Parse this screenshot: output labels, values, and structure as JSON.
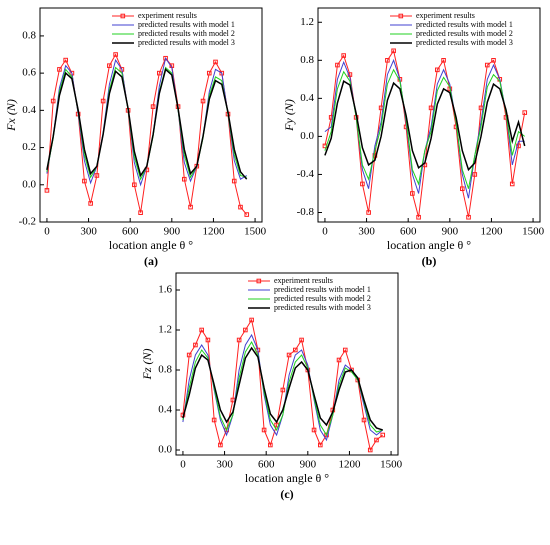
{
  "chart_data": [
    {
      "type": "line",
      "label": "(a)",
      "ylabel": "Fx (N)",
      "xlabel": "location angle θ °",
      "x": [
        0,
        45,
        90,
        135,
        180,
        225,
        270,
        315,
        360,
        405,
        450,
        495,
        540,
        585,
        630,
        675,
        720,
        765,
        810,
        855,
        900,
        945,
        990,
        1035,
        1080,
        1125,
        1170,
        1215,
        1260,
        1305,
        1350,
        1395,
        1440
      ],
      "xlim": [
        -50,
        1550
      ],
      "xticks": [
        0,
        300,
        600,
        900,
        1200,
        1500
      ],
      "ylim": [
        -0.2,
        0.95
      ],
      "yticks": [
        -0.2,
        {
          "value": 0,
          "label": "0.0"
        },
        0.2,
        0.4,
        0.6,
        0.8
      ],
      "legend": "upper right",
      "series": [
        {
          "name": "experiment results",
          "color": "#ff2020",
          "values": [
            -0.03,
            0.45,
            0.62,
            0.67,
            0.6,
            0.38,
            0.02,
            -0.1,
            0.05,
            0.45,
            0.64,
            0.7,
            0.62,
            0.4,
            0.0,
            -0.15,
            0.08,
            0.42,
            0.6,
            0.68,
            0.64,
            0.42,
            0.03,
            -0.12,
            0.1,
            0.45,
            0.6,
            0.66,
            0.6,
            0.38,
            0.02,
            -0.12,
            -0.16
          ]
        },
        {
          "name": "predicted results with model 1",
          "color": "#4040d0",
          "values": [
            0.06,
            0.26,
            0.52,
            0.64,
            0.6,
            0.38,
            0.13,
            0.01,
            0.1,
            0.28,
            0.54,
            0.67,
            0.62,
            0.4,
            0.12,
            0.0,
            0.1,
            0.27,
            0.53,
            0.68,
            0.63,
            0.4,
            0.12,
            0.02,
            0.1,
            0.26,
            0.5,
            0.62,
            0.6,
            0.38,
            0.13,
            0.03,
            0.05
          ]
        },
        {
          "name": "predicted results with model 2",
          "color": "#20d020",
          "values": [
            0.07,
            0.25,
            0.5,
            0.62,
            0.58,
            0.39,
            0.16,
            0.04,
            0.1,
            0.27,
            0.51,
            0.63,
            0.6,
            0.4,
            0.15,
            0.03,
            0.1,
            0.26,
            0.5,
            0.63,
            0.6,
            0.4,
            0.16,
            0.04,
            0.1,
            0.25,
            0.48,
            0.58,
            0.56,
            0.38,
            0.16,
            0.05,
            0.04
          ]
        },
        {
          "name": "predicted results with model 3",
          "color": "#000000",
          "values": [
            0.08,
            0.26,
            0.48,
            0.6,
            0.57,
            0.4,
            0.19,
            0.06,
            0.1,
            0.27,
            0.49,
            0.61,
            0.58,
            0.41,
            0.18,
            0.05,
            0.1,
            0.27,
            0.49,
            0.62,
            0.59,
            0.41,
            0.19,
            0.06,
            0.1,
            0.26,
            0.46,
            0.56,
            0.54,
            0.39,
            0.19,
            0.07,
            0.03
          ]
        }
      ]
    },
    {
      "type": "line",
      "label": "(b)",
      "ylabel": "Fy (N)",
      "xlabel": "location angle θ °",
      "x": [
        0,
        45,
        90,
        135,
        180,
        225,
        270,
        315,
        360,
        405,
        450,
        495,
        540,
        585,
        630,
        675,
        720,
        765,
        810,
        855,
        900,
        945,
        990,
        1035,
        1080,
        1125,
        1170,
        1215,
        1260,
        1305,
        1350,
        1395,
        1440
      ],
      "xlim": [
        -50,
        1550
      ],
      "xticks": [
        0,
        300,
        600,
        900,
        1200,
        1500
      ],
      "ylim": [
        -0.9,
        1.35
      ],
      "yticks": [
        -0.8,
        -0.4,
        {
          "value": 0,
          "label": "0.0"
        },
        0.4,
        0.8,
        1.2
      ],
      "legend": "upper right",
      "series": [
        {
          "name": "experiment results",
          "color": "#ff2020",
          "values": [
            -0.1,
            0.2,
            0.75,
            0.85,
            0.65,
            0.2,
            -0.5,
            -0.8,
            -0.2,
            0.3,
            0.8,
            0.9,
            0.6,
            0.1,
            -0.6,
            -0.85,
            -0.3,
            0.3,
            0.7,
            0.8,
            0.5,
            0.1,
            -0.55,
            -0.85,
            -0.4,
            0.3,
            0.75,
            0.8,
            0.6,
            0.2,
            -0.5,
            -0.1,
            0.25
          ]
        },
        {
          "name": "predicted results with model 1",
          "color": "#4040d0",
          "values": [
            0.05,
            0.1,
            0.6,
            0.78,
            0.62,
            0.2,
            -0.35,
            -0.55,
            -0.1,
            0.15,
            0.65,
            0.8,
            0.6,
            0.15,
            -0.4,
            -0.6,
            -0.15,
            0.1,
            0.55,
            0.7,
            0.55,
            0.15,
            -0.4,
            -0.65,
            -0.2,
            0.15,
            0.6,
            0.75,
            0.6,
            0.25,
            -0.3,
            -0.05,
            -0.05
          ]
        },
        {
          "name": "predicted results with model 2",
          "color": "#20d020",
          "values": [
            -0.15,
            0.05,
            0.5,
            0.68,
            0.58,
            0.2,
            -0.3,
            -0.45,
            -0.15,
            0.1,
            0.55,
            0.7,
            0.58,
            0.18,
            -0.35,
            -0.5,
            -0.15,
            0.05,
            0.48,
            0.62,
            0.52,
            0.15,
            -0.35,
            -0.55,
            -0.2,
            0.1,
            0.52,
            0.65,
            0.58,
            0.25,
            -0.2,
            0.05,
            0.0
          ]
        },
        {
          "name": "predicted results with model 3",
          "color": "#000000",
          "values": [
            -0.2,
            -0.02,
            0.35,
            0.58,
            0.54,
            0.24,
            -0.12,
            -0.3,
            -0.25,
            0.0,
            0.38,
            0.56,
            0.5,
            0.22,
            -0.15,
            -0.33,
            -0.28,
            -0.02,
            0.34,
            0.5,
            0.46,
            0.2,
            -0.15,
            -0.35,
            -0.28,
            0.0,
            0.36,
            0.55,
            0.5,
            0.28,
            -0.05,
            0.15,
            -0.1
          ]
        }
      ]
    },
    {
      "type": "line",
      "label": "(c)",
      "ylabel": "Fz (N)",
      "xlabel": "location angle θ °",
      "x": [
        0,
        45,
        90,
        135,
        180,
        225,
        270,
        315,
        360,
        405,
        450,
        495,
        540,
        585,
        630,
        675,
        720,
        765,
        810,
        855,
        900,
        945,
        990,
        1035,
        1080,
        1125,
        1170,
        1215,
        1260,
        1305,
        1350,
        1395,
        1440
      ],
      "xlim": [
        -50,
        1550
      ],
      "xticks": [
        0,
        300,
        600,
        900,
        1200,
        1500
      ],
      "ylim": [
        -0.05,
        1.77
      ],
      "yticks": [
        {
          "value": 0,
          "label": "0.0"
        },
        0.4,
        0.8,
        1.2,
        1.6
      ],
      "legend": "upper right",
      "series": [
        {
          "name": "experiment results",
          "color": "#ff2020",
          "values": [
            0.35,
            0.95,
            1.05,
            1.2,
            1.1,
            0.3,
            0.05,
            0.2,
            0.5,
            1.1,
            1.2,
            1.3,
            1.0,
            0.2,
            0.05,
            0.25,
            0.6,
            0.95,
            1.0,
            1.1,
            0.8,
            0.2,
            0.05,
            0.15,
            0.4,
            0.9,
            1.0,
            0.8,
            0.7,
            0.3,
            0.0,
            0.1,
            0.15
          ]
        },
        {
          "name": "predicted results with model 1",
          "color": "#4040d0",
          "values": [
            0.28,
            0.7,
            0.95,
            1.05,
            0.95,
            0.6,
            0.3,
            0.15,
            0.35,
            0.8,
            1.05,
            1.15,
            1.0,
            0.55,
            0.25,
            0.15,
            0.35,
            0.75,
            0.95,
            1.0,
            0.85,
            0.5,
            0.2,
            0.1,
            0.35,
            0.7,
            0.85,
            0.8,
            0.7,
            0.45,
            0.2,
            0.15,
            0.2
          ]
        },
        {
          "name": "predicted results with model 2",
          "color": "#20d020",
          "values": [
            0.3,
            0.62,
            0.88,
            1.0,
            0.92,
            0.62,
            0.33,
            0.2,
            0.35,
            0.72,
            0.98,
            1.08,
            0.95,
            0.58,
            0.3,
            0.2,
            0.35,
            0.68,
            0.88,
            0.95,
            0.82,
            0.52,
            0.25,
            0.15,
            0.35,
            0.65,
            0.82,
            0.78,
            0.7,
            0.48,
            0.25,
            0.18,
            0.2
          ]
        },
        {
          "name": "predicted results with model 3",
          "color": "#000000",
          "values": [
            0.32,
            0.55,
            0.82,
            0.95,
            0.9,
            0.65,
            0.4,
            0.28,
            0.38,
            0.65,
            0.92,
            1.02,
            0.93,
            0.62,
            0.36,
            0.28,
            0.4,
            0.62,
            0.82,
            0.88,
            0.8,
            0.55,
            0.32,
            0.25,
            0.38,
            0.6,
            0.78,
            0.8,
            0.72,
            0.5,
            0.3,
            0.22,
            0.2
          ]
        }
      ]
    }
  ]
}
